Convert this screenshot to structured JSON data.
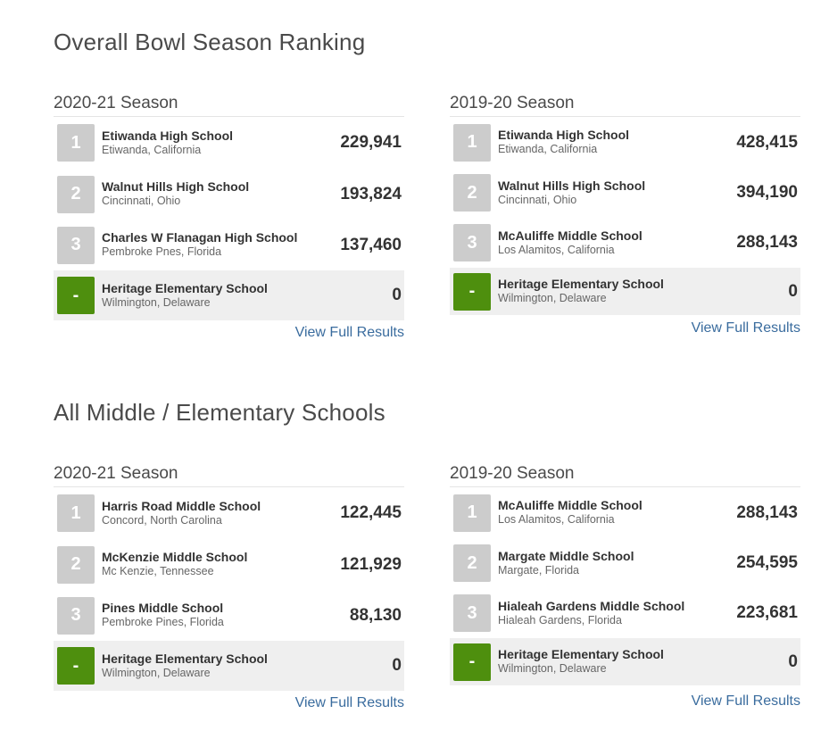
{
  "sections": [
    {
      "title": "Overall Bowl Season Ranking",
      "panels": [
        {
          "season": "2020-21 Season",
          "rows": [
            {
              "rank": "1",
              "name": "Etiwanda High School",
              "location": "Etiwanda, California",
              "score": "229,941"
            },
            {
              "rank": "2",
              "name": "Walnut Hills High School",
              "location": "Cincinnati, Ohio",
              "score": "193,824"
            },
            {
              "rank": "3",
              "name": "Charles W Flanagan High School",
              "location": "Pembroke Pnes, Florida",
              "score": "137,460"
            },
            {
              "rank": "-",
              "name": "Heritage Elementary School",
              "location": "Wilmington, Delaware",
              "score": "0"
            }
          ],
          "link": "View Full Results"
        },
        {
          "season": "2019-20 Season",
          "rows": [
            {
              "rank": "1",
              "name": "Etiwanda High School",
              "location": "Etiwanda, California",
              "score": "428,415"
            },
            {
              "rank": "2",
              "name": "Walnut Hills High School",
              "location": "Cincinnati, Ohio",
              "score": "394,190"
            },
            {
              "rank": "3",
              "name": "McAuliffe Middle School",
              "location": "Los Alamitos, California",
              "score": "288,143"
            },
            {
              "rank": "-",
              "name": "Heritage Elementary School",
              "location": "Wilmington, Delaware",
              "score": "0"
            }
          ],
          "link": "View Full Results"
        }
      ]
    },
    {
      "title": "All Middle / Elementary Schools",
      "panels": [
        {
          "season": "2020-21 Season",
          "rows": [
            {
              "rank": "1",
              "name": "Harris Road Middle School",
              "location": "Concord, North Carolina",
              "score": "122,445"
            },
            {
              "rank": "2",
              "name": "McKenzie Middle School",
              "location": "Mc Kenzie, Tennessee",
              "score": "121,929"
            },
            {
              "rank": "3",
              "name": "Pines Middle School",
              "location": "Pembroke Pines, Florida",
              "score": "88,130"
            },
            {
              "rank": "-",
              "name": "Heritage Elementary School",
              "location": "Wilmington, Delaware",
              "score": "0"
            }
          ],
          "link": "View Full Results"
        },
        {
          "season": "2019-20 Season",
          "rows": [
            {
              "rank": "1",
              "name": "McAuliffe Middle School",
              "location": "Los Alamitos, California",
              "score": "288,143"
            },
            {
              "rank": "2",
              "name": "Margate Middle School",
              "location": "Margate, Florida",
              "score": "254,595"
            },
            {
              "rank": "3",
              "name": "Hialeah Gardens Middle School",
              "location": "Hialeah Gardens, Florida",
              "score": "223,681"
            },
            {
              "rank": "-",
              "name": "Heritage Elementary School",
              "location": "Wilmington, Delaware",
              "score": "0"
            }
          ],
          "link": "View Full Results"
        }
      ]
    }
  ],
  "colors": {
    "rank_badge": "#cccccc",
    "rank_badge_highlight": "#4e8f0e",
    "highlight_row_bg": "#efefef",
    "link": "#3a6c9e"
  }
}
